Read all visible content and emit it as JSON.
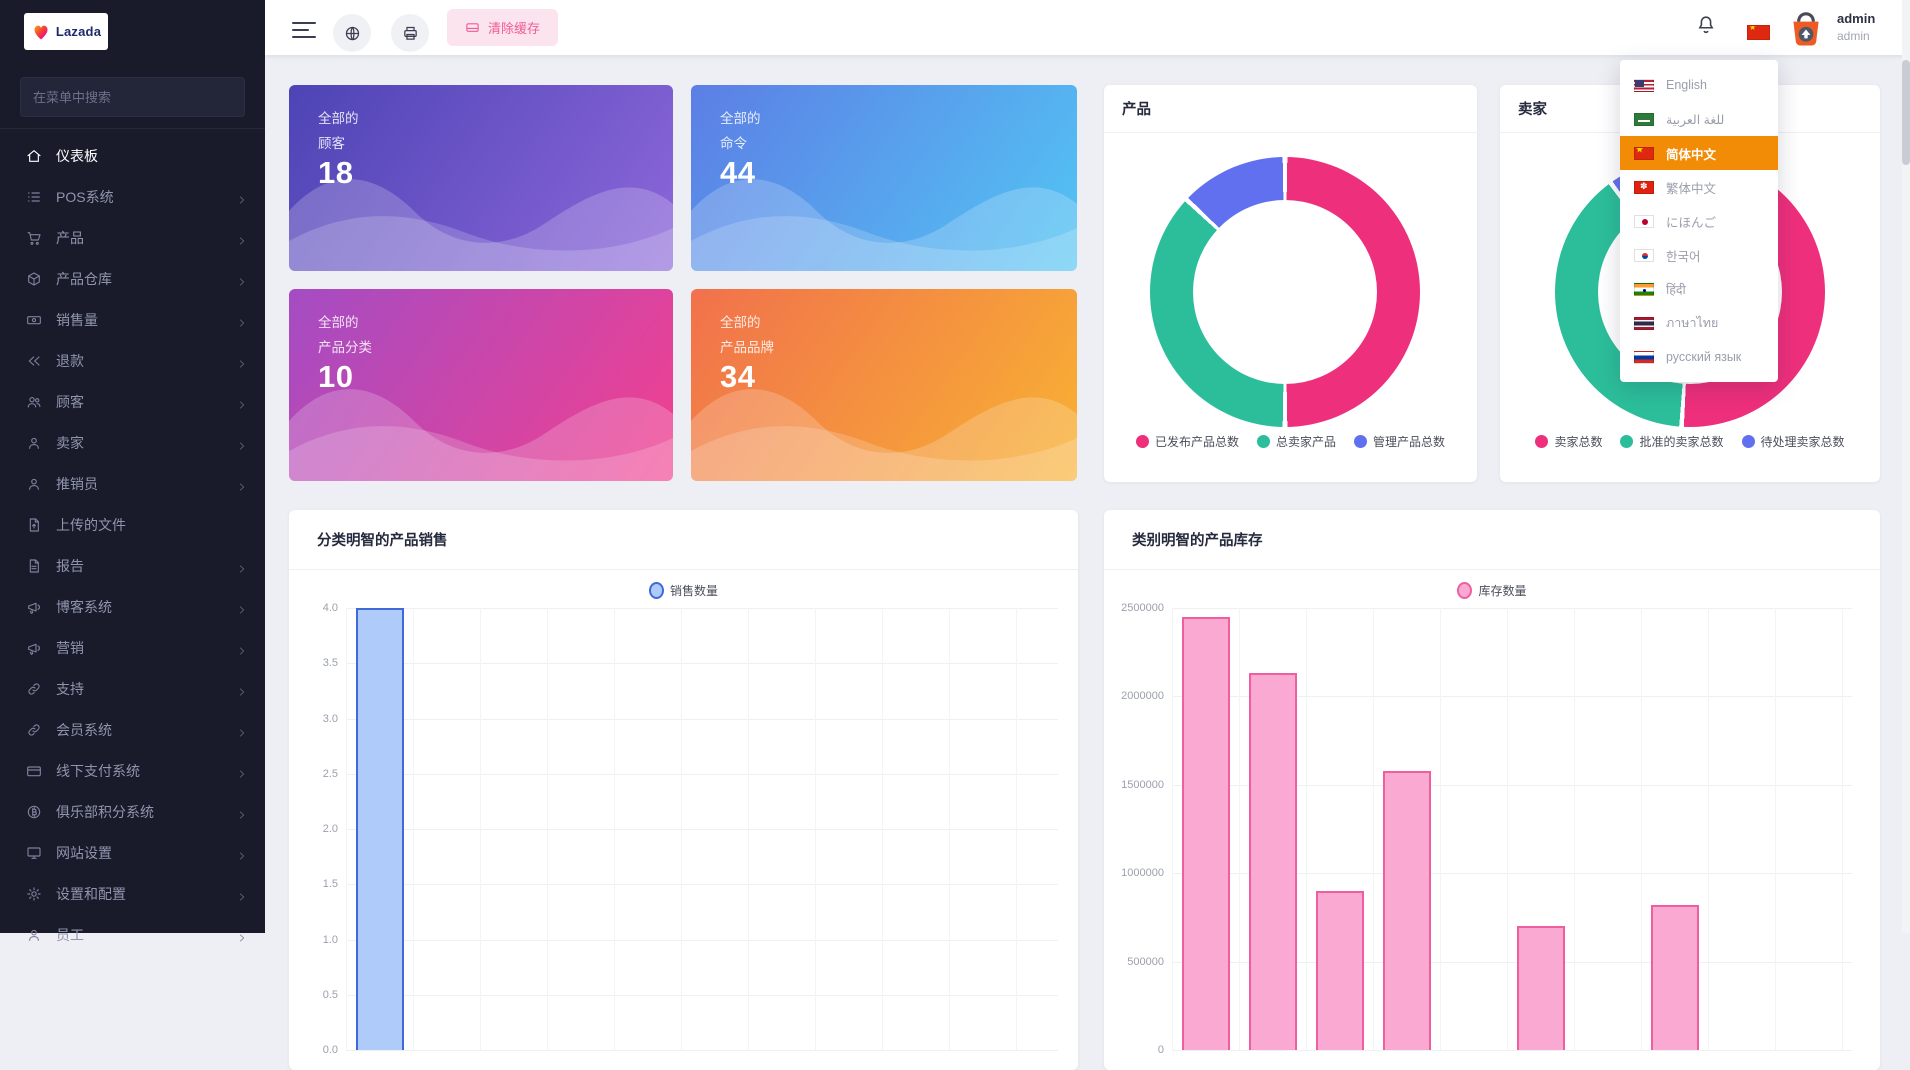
{
  "app": {
    "brand": "Lazada"
  },
  "sidebar": {
    "search_placeholder": "在菜单中搜索",
    "items": [
      {
        "label": "仪表板",
        "icon": "home-icon",
        "active": true,
        "arrow": false
      },
      {
        "label": "POS系统",
        "icon": "list-icon",
        "active": false,
        "arrow": true
      },
      {
        "label": "产品",
        "icon": "cart-icon",
        "active": false,
        "arrow": true
      },
      {
        "label": "产品仓库",
        "icon": "package-icon",
        "active": false,
        "arrow": true
      },
      {
        "label": "销售量",
        "icon": "banknote-icon",
        "active": false,
        "arrow": true
      },
      {
        "label": "退款",
        "icon": "rewind-icon",
        "active": false,
        "arrow": true
      },
      {
        "label": "顾客",
        "icon": "users-icon",
        "active": false,
        "arrow": true
      },
      {
        "label": "卖家",
        "icon": "user-icon",
        "active": false,
        "arrow": true
      },
      {
        "label": "推销员",
        "icon": "user-icon",
        "active": false,
        "arrow": true
      },
      {
        "label": "上传的文件",
        "icon": "file-up-icon",
        "active": false,
        "arrow": false
      },
      {
        "label": "报告",
        "icon": "report-icon",
        "active": false,
        "arrow": true
      },
      {
        "label": "博客系统",
        "icon": "megaphone-icon",
        "active": false,
        "arrow": true
      },
      {
        "label": "营销",
        "icon": "megaphone-icon",
        "active": false,
        "arrow": true
      },
      {
        "label": "支持",
        "icon": "link-icon",
        "active": false,
        "arrow": true
      },
      {
        "label": "会员系统",
        "icon": "link-icon",
        "active": false,
        "arrow": true
      },
      {
        "label": "线下支付系统",
        "icon": "card-icon",
        "active": false,
        "arrow": true
      },
      {
        "label": "俱乐部积分系统",
        "icon": "coin-icon",
        "active": false,
        "arrow": true
      },
      {
        "label": "网站设置",
        "icon": "monitor-icon",
        "active": false,
        "arrow": true
      },
      {
        "label": "设置和配置",
        "icon": "gear-icon",
        "active": false,
        "arrow": true
      },
      {
        "label": "员工",
        "icon": "user-icon",
        "active": false,
        "arrow": true
      }
    ]
  },
  "topbar": {
    "clear_cache_label": "清除缓存",
    "user": {
      "name": "admin",
      "role": "admin"
    }
  },
  "language_menu": {
    "active_index": 2,
    "items": [
      {
        "label": "English",
        "flag": "us"
      },
      {
        "label": "للغة العربية",
        "flag": "sa"
      },
      {
        "label": "简体中文",
        "flag": "cn"
      },
      {
        "label": "繁体中文",
        "flag": "hk"
      },
      {
        "label": "にほんご",
        "flag": "jp"
      },
      {
        "label": "한국어",
        "flag": "kr"
      },
      {
        "label": "हिंदी",
        "flag": "in"
      },
      {
        "label": "ภาษาไทย",
        "flag": "th"
      },
      {
        "label": "русский язык",
        "flag": "ru"
      }
    ]
  },
  "stats": [
    {
      "prefix": "全部的",
      "label": "顾客",
      "value": "18",
      "gradient": [
        "#4d44b5",
        "#8d67da"
      ]
    },
    {
      "prefix": "全部的",
      "label": "命令",
      "value": "44",
      "gradient": [
        "#5c7ee5",
        "#53c5f4"
      ]
    },
    {
      "prefix": "全部的",
      "label": "产品分类",
      "value": "10",
      "gradient": [
        "#a44cc4",
        "#f2408f"
      ]
    },
    {
      "prefix": "全部的",
      "label": "产品品牌",
      "value": "34",
      "gradient": [
        "#f1714c",
        "#f8b233"
      ]
    }
  ],
  "colors": {
    "pie_pink": "#ee2f7c",
    "pie_green": "#2cbe9a",
    "pie_blue": "#6170ef",
    "bar_blue_fill": "#aecbfa",
    "bar_blue_stroke": "#3f6ad8",
    "bar_pink_fill": "#faaad2",
    "bar_pink_stroke": "#ee5fa0",
    "menu_highlight": "#f28b05",
    "accent_pink": "#ef5c92"
  },
  "chart_data": [
    {
      "type": "pie",
      "title": "产品",
      "labels": [
        "已发布产品总数",
        "总卖家产品",
        "管理产品总数"
      ],
      "values": [
        50,
        37,
        13
      ],
      "unit": "percent (estimated from arc angles)",
      "colors": [
        "#ee2f7c",
        "#2cbe9a",
        "#6170ef"
      ],
      "legend_position": "bottom"
    },
    {
      "type": "pie",
      "title": "卖家",
      "labels": [
        "卖家总数",
        "批准的卖家总数",
        "待处理卖家总数"
      ],
      "values": [
        51,
        39,
        10
      ],
      "unit": "percent (estimated from arc angles)",
      "colors": [
        "#ee2f7c",
        "#2cbe9a",
        "#6170ef"
      ],
      "legend_position": "bottom"
    },
    {
      "type": "bar",
      "title": "分类明智的产品销售",
      "legend": "销售数量",
      "values": [
        4,
        0,
        0,
        0,
        0,
        0,
        0,
        0,
        0,
        0,
        0
      ],
      "ylim": [
        0,
        4
      ],
      "ystep": 0.5,
      "ytick_decimals": 1,
      "grid": true,
      "legend_position": "top-center"
    },
    {
      "type": "bar",
      "title": "类别明智的产品库存",
      "legend": "库存数量",
      "values": [
        2450000,
        2130000,
        900000,
        1580000,
        0,
        700000,
        0,
        820000,
        0,
        0
      ],
      "ylim": [
        0,
        2500000
      ],
      "ystep": 500000,
      "ytick_decimals": 0,
      "grid": true,
      "legend_position": "top-center"
    }
  ]
}
